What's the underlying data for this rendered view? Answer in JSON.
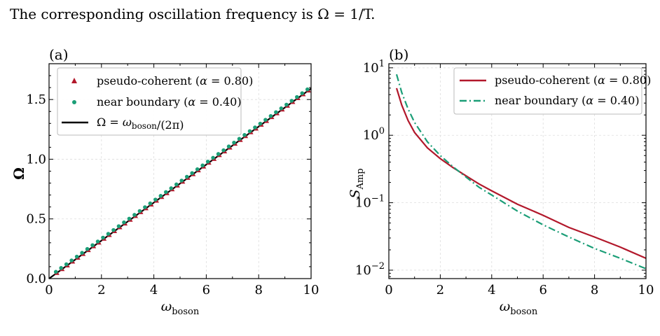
{
  "text_line": "The corresponding oscillation frequency is Ω = 1/T.",
  "chart_data": [
    {
      "type": "scatter",
      "panel_label": "(a)",
      "xlabel": "ωboson",
      "ylabel": "Ω",
      "xlim": [
        0,
        10
      ],
      "ylim": [
        0,
        1.8
      ],
      "x_ticks": [
        "0",
        "2",
        "4",
        "6",
        "8",
        "10"
      ],
      "y_ticks": [
        "0.0",
        "0.5",
        "1.0",
        "1.5"
      ],
      "grid": true,
      "legend_position": "top-left",
      "series": [
        {
          "name": "pseudo-coherent (α = 0.80)",
          "marker": "triangle",
          "color": "#b2182b",
          "x": [
            0.3,
            0.5,
            0.7,
            0.9,
            1.1,
            1.3,
            1.5,
            1.7,
            1.9,
            2.1,
            2.3,
            2.5,
            2.7,
            2.9,
            3.1,
            3.3,
            3.5,
            3.7,
            3.9,
            4.1,
            4.3,
            4.5,
            4.7,
            4.9,
            5.1,
            5.3,
            5.5,
            5.7,
            5.9,
            6.1,
            6.3,
            6.5,
            6.7,
            6.9,
            7.1,
            7.3,
            7.5,
            7.7,
            7.9,
            8.1,
            8.3,
            8.5,
            8.7,
            8.9,
            9.1,
            9.3,
            9.5,
            9.7,
            9.9
          ],
          "y": [
            0.048,
            0.08,
            0.111,
            0.143,
            0.175,
            0.207,
            0.239,
            0.271,
            0.302,
            0.334,
            0.366,
            0.398,
            0.43,
            0.462,
            0.493,
            0.525,
            0.557,
            0.589,
            0.621,
            0.653,
            0.684,
            0.716,
            0.748,
            0.78,
            0.812,
            0.844,
            0.875,
            0.907,
            0.939,
            0.971,
            1.003,
            1.035,
            1.066,
            1.098,
            1.13,
            1.162,
            1.194,
            1.226,
            1.257,
            1.289,
            1.321,
            1.353,
            1.385,
            1.417,
            1.448,
            1.48,
            1.512,
            1.544,
            1.576
          ]
        },
        {
          "name": "near boundary (α = 0.40)",
          "marker": "circle",
          "color": "#1b9e77",
          "x": [
            0.3,
            0.5,
            0.7,
            0.9,
            1.1,
            1.3,
            1.5,
            1.7,
            1.9,
            2.1,
            2.3,
            2.5,
            2.7,
            2.9,
            3.1,
            3.3,
            3.5,
            3.7,
            3.9,
            4.1,
            4.3,
            4.5,
            4.7,
            4.9,
            5.1,
            5.3,
            5.5,
            5.7,
            5.9,
            6.1,
            6.3,
            6.5,
            6.7,
            6.9,
            7.1,
            7.3,
            7.5,
            7.7,
            7.9,
            8.1,
            8.3,
            8.5,
            8.7,
            8.9,
            9.1,
            9.3,
            9.5,
            9.7,
            9.9
          ],
          "y": [
            0.048,
            0.08,
            0.111,
            0.143,
            0.175,
            0.207,
            0.239,
            0.271,
            0.302,
            0.334,
            0.366,
            0.398,
            0.43,
            0.462,
            0.493,
            0.525,
            0.557,
            0.589,
            0.621,
            0.653,
            0.684,
            0.716,
            0.748,
            0.78,
            0.812,
            0.844,
            0.875,
            0.907,
            0.939,
            0.971,
            1.003,
            1.035,
            1.066,
            1.098,
            1.13,
            1.162,
            1.194,
            1.226,
            1.257,
            1.289,
            1.321,
            1.353,
            1.385,
            1.417,
            1.448,
            1.48,
            1.512,
            1.544,
            1.576
          ]
        },
        {
          "name": "Ω = ωboson/(2π)",
          "marker": "line",
          "color": "#000000",
          "x": [
            0,
            10
          ],
          "y": [
            0,
            1.592
          ]
        }
      ]
    },
    {
      "type": "line",
      "panel_label": "(b)",
      "xlabel": "ωboson",
      "ylabel": "SAmp",
      "xlim": [
        0,
        10
      ],
      "ylim": [
        0.0075,
        11.5
      ],
      "yscale": "log",
      "x_ticks": [
        "0",
        "2",
        "4",
        "6",
        "8",
        "10"
      ],
      "y_ticks": [
        "10^-2",
        "10^-1",
        "10^0",
        "10^1"
      ],
      "grid": true,
      "legend_position": "top-right",
      "series": [
        {
          "name": "pseudo-coherent (α = 0.80)",
          "style": "solid",
          "color": "#b2182b",
          "x": [
            0.3,
            0.5,
            0.75,
            1.0,
            1.5,
            2.0,
            2.5,
            3.0,
            3.5,
            4.0,
            5.0,
            6.0,
            7.0,
            8.0,
            9.0,
            10.0
          ],
          "y": [
            5.0,
            2.8,
            1.65,
            1.1,
            0.65,
            0.45,
            0.33,
            0.25,
            0.19,
            0.15,
            0.095,
            0.065,
            0.043,
            0.031,
            0.022,
            0.015
          ]
        },
        {
          "name": "near boundary (α = 0.40)",
          "style": "dashdot",
          "color": "#1b9e77",
          "x": [
            0.3,
            0.5,
            0.75,
            1.0,
            1.5,
            2.0,
            2.5,
            3.0,
            3.5,
            4.0,
            5.0,
            6.0,
            7.0,
            8.0,
            9.0,
            10.0
          ],
          "y": [
            8.0,
            4.3,
            2.45,
            1.55,
            0.8,
            0.5,
            0.34,
            0.24,
            0.17,
            0.13,
            0.075,
            0.047,
            0.031,
            0.021,
            0.015,
            0.0105
          ]
        }
      ]
    }
  ]
}
